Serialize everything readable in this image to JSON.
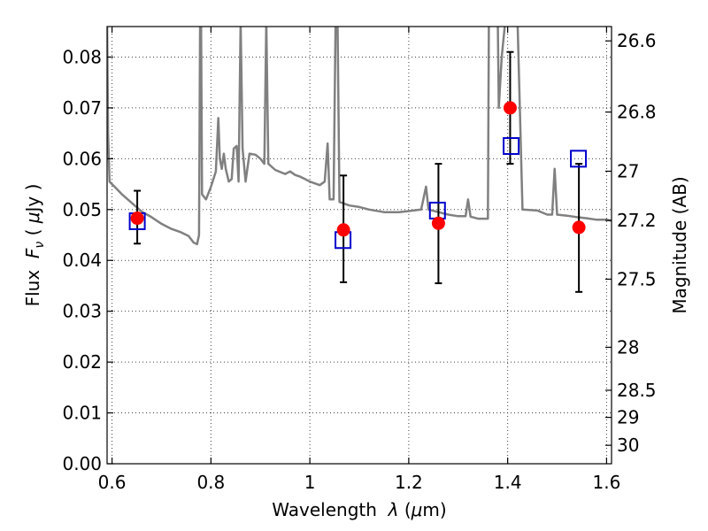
{
  "chart_data": {
    "type": "scatter",
    "title": "",
    "xlabel_text": "Wavelength",
    "xlabel_symbol": "λ",
    "xlabel_unit_open": " (",
    "xlabel_unit_mu": "μ",
    "xlabel_unit_rest": "m)",
    "ylabel_text": "Flux",
    "ylabel_symbol": "F",
    "ylabel_subscript": "ν",
    "ylabel_unit_open": " ( ",
    "ylabel_unit_mu": "μ",
    "ylabel_unit_rest": "Jy )",
    "y2label": "Magnitude (AB)",
    "xlim": [
      0.59,
      1.61
    ],
    "ylim": [
      0.0,
      0.086
    ],
    "x_ticks": [
      {
        "value": 0.6,
        "label": "0.6"
      },
      {
        "value": 0.8,
        "label": "0.8"
      },
      {
        "value": 1.0,
        "label": "1"
      },
      {
        "value": 1.2,
        "label": "1.2"
      },
      {
        "value": 1.4,
        "label": "1.4"
      },
      {
        "value": 1.6,
        "label": "1.6"
      }
    ],
    "y_ticks": [
      {
        "value": 0.0,
        "label": "0.00"
      },
      {
        "value": 0.01,
        "label": "0.01"
      },
      {
        "value": 0.02,
        "label": "0.02"
      },
      {
        "value": 0.03,
        "label": "0.03"
      },
      {
        "value": 0.04,
        "label": "0.04"
      },
      {
        "value": 0.05,
        "label": "0.05"
      },
      {
        "value": 0.06,
        "label": "0.06"
      },
      {
        "value": 0.07,
        "label": "0.07"
      },
      {
        "value": 0.08,
        "label": "0.08"
      }
    ],
    "y2_ticks": [
      {
        "value": 26.6,
        "label": "26.6"
      },
      {
        "value": 26.8,
        "label": "26.8"
      },
      {
        "value": 27.0,
        "label": "27"
      },
      {
        "value": 27.2,
        "label": "27.2"
      },
      {
        "value": 27.5,
        "label": "27.5"
      },
      {
        "value": 28.0,
        "label": "28"
      },
      {
        "value": 28.5,
        "label": "28.5"
      },
      {
        "value": 29.0,
        "label": "29"
      },
      {
        "value": 30.0,
        "label": "30"
      }
    ],
    "grid": true,
    "colors": {
      "model": "#808080",
      "observed": "#ff0000",
      "model_photometry": "#0000cc",
      "errorbar": "#000000"
    },
    "series": [
      {
        "kind": "model_spectrum",
        "points": [
          [
            0.59,
            0.087
          ],
          [
            0.592,
            0.065
          ],
          [
            0.595,
            0.0555
          ],
          [
            0.6,
            0.055
          ],
          [
            0.61,
            0.054
          ],
          [
            0.62,
            0.053
          ],
          [
            0.64,
            0.0513
          ],
          [
            0.66,
            0.0496
          ],
          [
            0.68,
            0.0485
          ],
          [
            0.7,
            0.0472
          ],
          [
            0.72,
            0.0462
          ],
          [
            0.74,
            0.0455
          ],
          [
            0.755,
            0.0448
          ],
          [
            0.765,
            0.0435
          ],
          [
            0.772,
            0.0432
          ],
          [
            0.776,
            0.045
          ],
          [
            0.778,
            0.087
          ],
          [
            0.78,
            0.087
          ],
          [
            0.782,
            0.053
          ],
          [
            0.79,
            0.052
          ],
          [
            0.8,
            0.0545
          ],
          [
            0.81,
            0.0575
          ],
          [
            0.815,
            0.068
          ],
          [
            0.818,
            0.06
          ],
          [
            0.822,
            0.058
          ],
          [
            0.826,
            0.061
          ],
          [
            0.83,
            0.058
          ],
          [
            0.836,
            0.0555
          ],
          [
            0.842,
            0.056
          ],
          [
            0.846,
            0.062
          ],
          [
            0.852,
            0.0625
          ],
          [
            0.856,
            0.0555
          ],
          [
            0.86,
            0.087
          ],
          [
            0.864,
            0.062
          ],
          [
            0.87,
            0.0555
          ],
          [
            0.878,
            0.061
          ],
          [
            0.89,
            0.0608
          ],
          [
            0.9,
            0.06
          ],
          [
            0.908,
            0.059
          ],
          [
            0.912,
            0.087
          ],
          [
            0.916,
            0.059
          ],
          [
            0.93,
            0.0578
          ],
          [
            0.95,
            0.057
          ],
          [
            0.96,
            0.0575
          ],
          [
            0.97,
            0.0568
          ],
          [
            0.98,
            0.0565
          ],
          [
            0.99,
            0.056
          ],
          [
            1.0,
            0.0555
          ],
          [
            1.02,
            0.0548
          ],
          [
            1.03,
            0.0555
          ],
          [
            1.036,
            0.063
          ],
          [
            1.04,
            0.052
          ],
          [
            1.048,
            0.052
          ],
          [
            1.052,
            0.087
          ],
          [
            1.056,
            0.087
          ],
          [
            1.06,
            0.0515
          ],
          [
            1.08,
            0.0508
          ],
          [
            1.1,
            0.0505
          ],
          [
            1.12,
            0.05
          ],
          [
            1.15,
            0.0495
          ],
          [
            1.18,
            0.0495
          ],
          [
            1.2,
            0.0497
          ],
          [
            1.225,
            0.05
          ],
          [
            1.235,
            0.0545
          ],
          [
            1.24,
            0.05
          ],
          [
            1.26,
            0.0495
          ],
          [
            1.28,
            0.049
          ],
          [
            1.3,
            0.0487
          ],
          [
            1.315,
            0.0487
          ],
          [
            1.32,
            0.052
          ],
          [
            1.325,
            0.0486
          ],
          [
            1.34,
            0.0482
          ],
          [
            1.35,
            0.0482
          ],
          [
            1.36,
            0.0482
          ],
          [
            1.362,
            0.087
          ],
          [
            1.38,
            0.087
          ],
          [
            1.382,
            0.07
          ],
          [
            1.388,
            0.08
          ],
          [
            1.395,
            0.087
          ],
          [
            1.41,
            0.087
          ],
          [
            1.42,
            0.087
          ],
          [
            1.43,
            0.05
          ],
          [
            1.46,
            0.0498
          ],
          [
            1.48,
            0.049
          ],
          [
            1.49,
            0.049
          ],
          [
            1.495,
            0.058
          ],
          [
            1.5,
            0.049
          ],
          [
            1.52,
            0.0488
          ],
          [
            1.54,
            0.0485
          ],
          [
            1.56,
            0.0483
          ],
          [
            1.58,
            0.048
          ],
          [
            1.6,
            0.048
          ],
          [
            1.61,
            0.0478
          ]
        ]
      },
      {
        "kind": "model_photometry",
        "marker": "square",
        "points": [
          {
            "x": 0.651,
            "y": 0.0477
          },
          {
            "x": 1.067,
            "y": 0.044
          },
          {
            "x": 1.258,
            "y": 0.0498
          },
          {
            "x": 1.407,
            "y": 0.0625
          },
          {
            "x": 1.543,
            "y": 0.06
          }
        ]
      },
      {
        "kind": "observed",
        "marker": "circle",
        "points": [
          {
            "x": 0.651,
            "y": 0.0483,
            "ylo": 0.0433,
            "yhi": 0.0537
          },
          {
            "x": 1.068,
            "y": 0.046,
            "ylo": 0.0357,
            "yhi": 0.0567
          },
          {
            "x": 1.26,
            "y": 0.0473,
            "ylo": 0.0355,
            "yhi": 0.059
          },
          {
            "x": 1.405,
            "y": 0.07,
            "ylo": 0.059,
            "yhi": 0.081
          },
          {
            "x": 1.544,
            "y": 0.0465,
            "ylo": 0.0338,
            "yhi": 0.059
          }
        ]
      }
    ]
  }
}
